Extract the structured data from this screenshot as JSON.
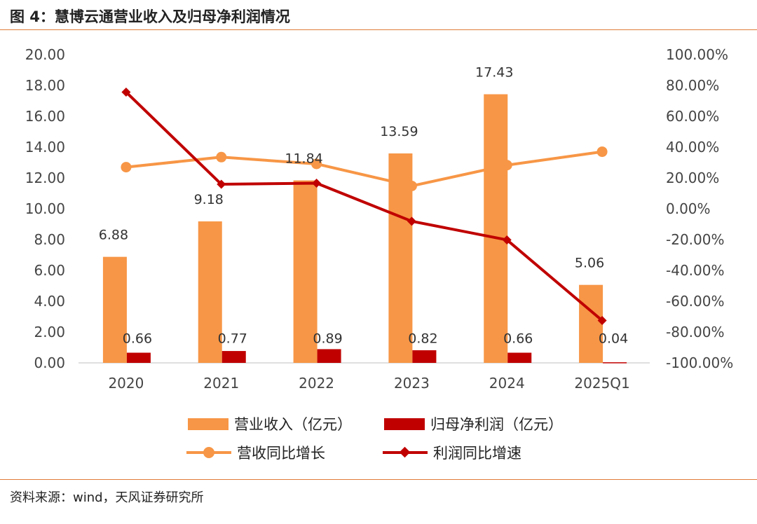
{
  "header": {
    "title": "图 4：慧博云通营业收入及归母净利润情况"
  },
  "footer": {
    "source": "资料来源：wind，天风证券研究所"
  },
  "chart_data": {
    "type": "bar+line",
    "categories": [
      "2020",
      "2021",
      "2022",
      "2023",
      "2024",
      "2025Q1"
    ],
    "y_left": {
      "ylim": [
        0,
        20
      ],
      "ticks": [
        "0.00",
        "2.00",
        "4.00",
        "6.00",
        "8.00",
        "10.00",
        "12.00",
        "14.00",
        "16.00",
        "18.00",
        "20.00"
      ]
    },
    "y_right": {
      "ylim": [
        -100,
        100
      ],
      "ticks": [
        "-100.00%",
        "-80.00%",
        "-60.00%",
        "-40.00%",
        "-20.00%",
        "0.00%",
        "20.00%",
        "40.00%",
        "60.00%",
        "80.00%",
        "100.00%"
      ]
    },
    "grid": false,
    "legend_position": "bottom",
    "series": [
      {
        "name": "营业收入（亿元）",
        "kind": "bar",
        "axis": "left",
        "color": "#F79646",
        "values": [
          6.88,
          9.18,
          11.84,
          13.59,
          17.43,
          5.06
        ],
        "labels": [
          "6.88",
          "9.18",
          "11.84",
          "13.59",
          "17.43",
          "5.06"
        ]
      },
      {
        "name": "归母净利润（亿元）",
        "kind": "bar",
        "axis": "left",
        "color": "#C00000",
        "values": [
          0.66,
          0.77,
          0.89,
          0.82,
          0.66,
          0.04
        ],
        "labels": [
          "0.66",
          "0.77",
          "0.89",
          "0.82",
          "0.66",
          "0.04"
        ]
      },
      {
        "name": "营收同比增长",
        "kind": "line",
        "axis": "right",
        "marker": "circle",
        "color": "#F79646",
        "values": [
          27,
          33.5,
          29.1,
          14.8,
          28.3,
          37
        ]
      },
      {
        "name": "利润同比增速",
        "kind": "line",
        "axis": "right",
        "marker": "diamond",
        "color": "#C00000",
        "values": [
          75.7,
          15.9,
          16.6,
          -8.1,
          -20.2,
          -72.5
        ]
      }
    ]
  }
}
